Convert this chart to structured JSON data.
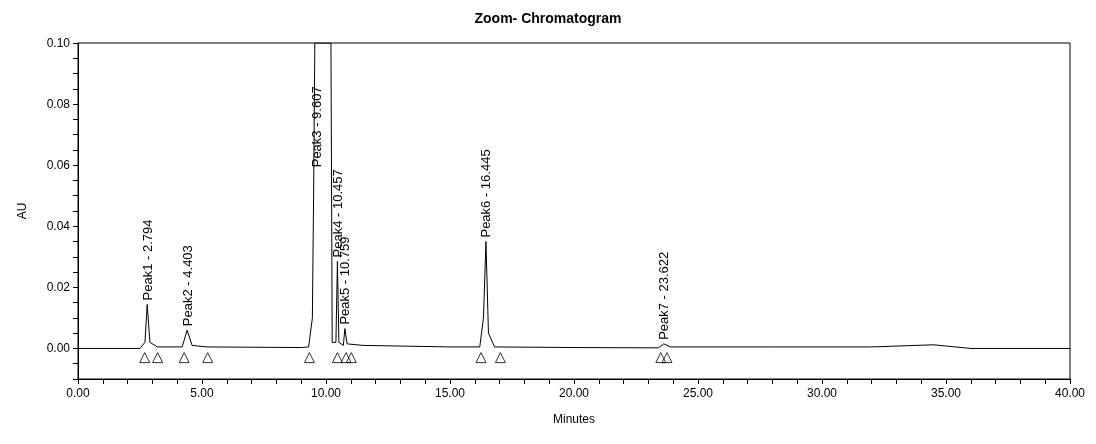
{
  "chart_data": {
    "type": "line",
    "title": "Zoom- Chromatogram",
    "xlabel": "Minutes",
    "ylabel": "AU",
    "series": [
      {
        "type": "line",
        "color": "#000000",
        "marker": "none",
        "x": [
          0,
          2.5,
          2.7,
          2.79,
          2.9,
          3.2,
          4.2,
          4.4,
          4.6,
          5.2,
          9.0,
          9.3,
          9.45,
          9.5,
          9.55,
          10.2,
          10.25,
          10.4,
          10.46,
          10.52,
          10.7,
          10.76,
          10.85,
          11.5,
          15,
          16.2,
          16.35,
          16.45,
          16.55,
          16.8,
          20,
          23.4,
          23.62,
          23.9,
          28,
          32,
          34.5,
          36,
          40
        ],
        "values": [
          0,
          0,
          0.002,
          0.0144,
          0.002,
          0.0005,
          0.0005,
          0.006,
          0.001,
          0.0005,
          0.0003,
          0.0005,
          0.01,
          0.05,
          0.1,
          0.1,
          0.002,
          0.002,
          0.0285,
          0.002,
          0.001,
          0.0065,
          0.0015,
          0.001,
          0.0005,
          0.0005,
          0.01,
          0.035,
          0.005,
          0.0005,
          0.0003,
          0.0002,
          0.0015,
          0.0005,
          0.0005,
          0.0005,
          0.0012,
          0.0,
          0.0
        ]
      },
      {
        "type": "scatter",
        "color": "#000000",
        "marker": "triangle",
        "x": [
          2.69,
          3.21,
          4.28,
          5.23,
          9.33,
          10.46,
          10.81,
          11.02,
          16.25,
          17.03,
          23.5,
          23.75
        ],
        "values": [
          -0.003,
          -0.003,
          -0.003,
          -0.003,
          -0.003,
          -0.003,
          -0.003,
          -0.003,
          -0.003,
          -0.003,
          -0.003,
          -0.003
        ]
      }
    ],
    "annotations": [
      {
        "text": "Peak1 - 2.794",
        "x": 2.794,
        "y": 0.0144
      },
      {
        "text": "Peak2 - 4.403",
        "x": 4.403,
        "y": 0.006
      },
      {
        "text": "Peak3 - 9.607",
        "x": 9.607,
        "y": 0.058
      },
      {
        "text": "Peak4 - 10.457",
        "x": 10.457,
        "y": 0.0285
      },
      {
        "text": "Peak5 - 10.759",
        "x": 10.759,
        "y": 0.0065
      },
      {
        "text": "Peak6 - 16.445",
        "x": 16.445,
        "y": 0.035
      },
      {
        "text": "Peak7 - 23.622",
        "x": 23.622,
        "y": 0.0015
      }
    ],
    "xlim": [
      0,
      40
    ],
    "ylim": [
      -0.01,
      0.1
    ],
    "xticks": [
      {
        "value": 0,
        "label": "0.00"
      },
      {
        "value": 1,
        "label": null
      },
      {
        "value": 2,
        "label": null
      },
      {
        "value": 3,
        "label": null
      },
      {
        "value": 4,
        "label": null
      },
      {
        "value": 5,
        "label": "5.00"
      },
      {
        "value": 6,
        "label": null
      },
      {
        "value": 7,
        "label": null
      },
      {
        "value": 8,
        "label": null
      },
      {
        "value": 9,
        "label": null
      },
      {
        "value": 10,
        "label": "10.00"
      },
      {
        "value": 11,
        "label": null
      },
      {
        "value": 12,
        "label": null
      },
      {
        "value": 13,
        "label": null
      },
      {
        "value": 14,
        "label": null
      },
      {
        "value": 15,
        "label": "15.00"
      },
      {
        "value": 16,
        "label": null
      },
      {
        "value": 17,
        "label": null
      },
      {
        "value": 18,
        "label": null
      },
      {
        "value": 19,
        "label": null
      },
      {
        "value": 20,
        "label": "20.00"
      },
      {
        "value": 21,
        "label": null
      },
      {
        "value": 22,
        "label": null
      },
      {
        "value": 23,
        "label": null
      },
      {
        "value": 24,
        "label": null
      },
      {
        "value": 25,
        "label": "25.00"
      },
      {
        "value": 26,
        "label": null
      },
      {
        "value": 27,
        "label": null
      },
      {
        "value": 28,
        "label": null
      },
      {
        "value": 29,
        "label": null
      },
      {
        "value": 30,
        "label": "30.00"
      },
      {
        "value": 31,
        "label": null
      },
      {
        "value": 32,
        "label": null
      },
      {
        "value": 33,
        "label": null
      },
      {
        "value": 34,
        "label": null
      },
      {
        "value": 35,
        "label": "35.00"
      },
      {
        "value": 36,
        "label": null
      },
      {
        "value": 37,
        "label": null
      },
      {
        "value": 38,
        "label": null
      },
      {
        "value": 39,
        "label": null
      },
      {
        "value": 40,
        "label": "40.00"
      }
    ],
    "yticks": [
      {
        "value": -0.01,
        "label": null
      },
      {
        "value": -0.005,
        "label": null
      },
      {
        "value": 0,
        "label": "0.00"
      },
      {
        "value": 0.005,
        "label": null
      },
      {
        "value": 0.01,
        "label": null
      },
      {
        "value": 0.015,
        "label": null
      },
      {
        "value": 0.02,
        "label": "0.02"
      },
      {
        "value": 0.025,
        "label": null
      },
      {
        "value": 0.03,
        "label": null
      },
      {
        "value": 0.035,
        "label": null
      },
      {
        "value": 0.04,
        "label": "0.04"
      },
      {
        "value": 0.045,
        "label": null
      },
      {
        "value": 0.05,
        "label": null
      },
      {
        "value": 0.055,
        "label": null
      },
      {
        "value": 0.06,
        "label": "0.06"
      },
      {
        "value": 0.065,
        "label": null
      },
      {
        "value": 0.07,
        "label": null
      },
      {
        "value": 0.075,
        "label": null
      },
      {
        "value": 0.08,
        "label": "0.08"
      },
      {
        "value": 0.085,
        "label": null
      },
      {
        "value": 0.09,
        "label": null
      },
      {
        "value": 0.095,
        "label": null
      },
      {
        "value": 0.1,
        "label": "0.10"
      }
    ],
    "grid": false
  }
}
